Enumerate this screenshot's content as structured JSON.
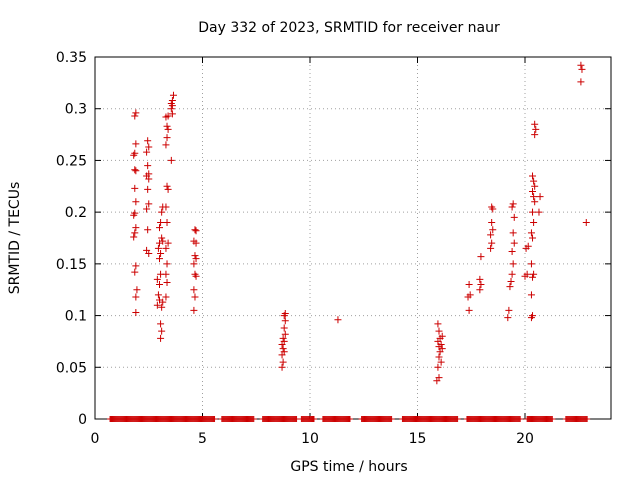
{
  "chart_data": {
    "type": "scatter",
    "title": "Day 332 of 2023, SRMTID for receiver naur",
    "xlabel": "GPS time / hours",
    "ylabel": "SRMTID / TECUs",
    "xlim": [
      0,
      24
    ],
    "ylim": [
      0,
      0.35
    ],
    "grid": true,
    "x_ticks": [
      0,
      5,
      10,
      15,
      20
    ],
    "x_tick_labels": [
      "0",
      "5",
      "10",
      "15",
      "20"
    ],
    "y_ticks": [
      0,
      0.05,
      0.1,
      0.15,
      0.2,
      0.25,
      0.3,
      0.35
    ],
    "y_tick_labels": [
      "0",
      "0.05",
      "0.1",
      "0.15",
      "0.2",
      "0.25",
      "0.3",
      "0.35"
    ],
    "marker": "+",
    "color": "#cc0000",
    "zero_ranges": [
      [
        0.7,
        5.6
      ],
      [
        5.9,
        7.4
      ],
      [
        7.8,
        9.4
      ],
      [
        9.6,
        10.2
      ],
      [
        10.6,
        11.9
      ],
      [
        12.4,
        13.8
      ],
      [
        14.3,
        16.9
      ],
      [
        17.3,
        19.8
      ],
      [
        20.1,
        21.3
      ],
      [
        21.9,
        22.9
      ]
    ],
    "series": [
      {
        "name": "SRMTID",
        "points": [
          [
            1.9,
            0.103
          ],
          [
            1.9,
            0.118
          ],
          [
            1.95,
            0.125
          ],
          [
            1.85,
            0.142
          ],
          [
            1.9,
            0.148
          ],
          [
            1.8,
            0.176
          ],
          [
            1.85,
            0.18
          ],
          [
            1.9,
            0.185
          ],
          [
            1.8,
            0.197
          ],
          [
            1.85,
            0.199
          ],
          [
            1.9,
            0.21
          ],
          [
            1.85,
            0.223
          ],
          [
            1.9,
            0.24
          ],
          [
            1.85,
            0.241
          ],
          [
            1.8,
            0.255
          ],
          [
            1.85,
            0.257
          ],
          [
            1.9,
            0.266
          ],
          [
            1.85,
            0.293
          ],
          [
            1.9,
            0.296
          ],
          [
            2.4,
            0.163
          ],
          [
            2.5,
            0.16
          ],
          [
            2.45,
            0.183
          ],
          [
            2.4,
            0.203
          ],
          [
            2.5,
            0.208
          ],
          [
            2.45,
            0.222
          ],
          [
            2.5,
            0.232
          ],
          [
            2.4,
            0.235
          ],
          [
            2.5,
            0.237
          ],
          [
            2.45,
            0.245
          ],
          [
            2.4,
            0.258
          ],
          [
            2.5,
            0.263
          ],
          [
            2.45,
            0.269
          ],
          [
            2.9,
            0.11
          ],
          [
            3.0,
            0.115
          ],
          [
            2.95,
            0.12
          ],
          [
            3.0,
            0.13
          ],
          [
            2.9,
            0.135
          ],
          [
            3.05,
            0.14
          ],
          [
            3.0,
            0.155
          ],
          [
            3.05,
            0.16
          ],
          [
            2.95,
            0.165
          ],
          [
            3.0,
            0.17
          ],
          [
            3.1,
            0.175
          ],
          [
            3.15,
            0.172
          ],
          [
            3.0,
            0.185
          ],
          [
            3.05,
            0.19
          ],
          [
            3.1,
            0.2
          ],
          [
            3.15,
            0.205
          ],
          [
            3.05,
            0.078
          ],
          [
            3.1,
            0.085
          ],
          [
            3.05,
            0.092
          ],
          [
            3.1,
            0.108
          ],
          [
            3.15,
            0.113
          ],
          [
            3.3,
            0.118
          ],
          [
            3.35,
            0.132
          ],
          [
            3.3,
            0.14
          ],
          [
            3.35,
            0.15
          ],
          [
            3.3,
            0.165
          ],
          [
            3.4,
            0.17
          ],
          [
            3.35,
            0.19
          ],
          [
            3.3,
            0.205
          ],
          [
            3.4,
            0.222
          ],
          [
            3.35,
            0.225
          ],
          [
            3.3,
            0.265
          ],
          [
            3.35,
            0.272
          ],
          [
            3.4,
            0.28
          ],
          [
            3.35,
            0.283
          ],
          [
            3.3,
            0.292
          ],
          [
            3.4,
            0.293
          ],
          [
            3.55,
            0.25
          ],
          [
            3.6,
            0.295
          ],
          [
            3.55,
            0.3
          ],
          [
            3.6,
            0.303
          ],
          [
            3.55,
            0.305
          ],
          [
            3.6,
            0.308
          ],
          [
            3.65,
            0.313
          ],
          [
            4.6,
            0.105
          ],
          [
            4.65,
            0.118
          ],
          [
            4.6,
            0.125
          ],
          [
            4.7,
            0.138
          ],
          [
            4.65,
            0.14
          ],
          [
            4.6,
            0.15
          ],
          [
            4.7,
            0.155
          ],
          [
            4.65,
            0.158
          ],
          [
            4.7,
            0.17
          ],
          [
            4.6,
            0.172
          ],
          [
            4.65,
            0.183
          ],
          [
            4.7,
            0.182
          ],
          [
            8.7,
            0.05
          ],
          [
            8.75,
            0.055
          ],
          [
            8.7,
            0.062
          ],
          [
            8.8,
            0.065
          ],
          [
            8.75,
            0.068
          ],
          [
            8.7,
            0.072
          ],
          [
            8.8,
            0.075
          ],
          [
            8.75,
            0.078
          ],
          [
            8.85,
            0.082
          ],
          [
            8.8,
            0.088
          ],
          [
            8.85,
            0.095
          ],
          [
            8.8,
            0.1
          ],
          [
            8.85,
            0.102
          ],
          [
            11.3,
            0.096
          ],
          [
            15.9,
            0.037
          ],
          [
            16.0,
            0.04
          ],
          [
            15.95,
            0.05
          ],
          [
            16.1,
            0.055
          ],
          [
            16.0,
            0.06
          ],
          [
            16.05,
            0.065
          ],
          [
            16.15,
            0.068
          ],
          [
            16.0,
            0.07
          ],
          [
            16.1,
            0.072
          ],
          [
            15.95,
            0.075
          ],
          [
            16.05,
            0.078
          ],
          [
            16.15,
            0.08
          ],
          [
            16.0,
            0.085
          ],
          [
            15.95,
            0.092
          ],
          [
            17.4,
            0.105
          ],
          [
            17.35,
            0.118
          ],
          [
            17.45,
            0.12
          ],
          [
            17.4,
            0.13
          ],
          [
            17.9,
            0.125
          ],
          [
            17.95,
            0.13
          ],
          [
            17.9,
            0.135
          ],
          [
            17.95,
            0.157
          ],
          [
            18.4,
            0.165
          ],
          [
            18.45,
            0.17
          ],
          [
            18.4,
            0.178
          ],
          [
            18.5,
            0.183
          ],
          [
            18.45,
            0.19
          ],
          [
            18.5,
            0.203
          ],
          [
            18.45,
            0.205
          ],
          [
            19.2,
            0.098
          ],
          [
            19.25,
            0.105
          ],
          [
            19.3,
            0.128
          ],
          [
            19.35,
            0.133
          ],
          [
            19.4,
            0.14
          ],
          [
            19.45,
            0.15
          ],
          [
            19.4,
            0.162
          ],
          [
            19.5,
            0.17
          ],
          [
            19.45,
            0.18
          ],
          [
            19.5,
            0.195
          ],
          [
            19.4,
            0.205
          ],
          [
            19.45,
            0.208
          ],
          [
            20.0,
            0.138
          ],
          [
            20.1,
            0.14
          ],
          [
            20.05,
            0.165
          ],
          [
            20.15,
            0.167
          ],
          [
            20.3,
            0.098
          ],
          [
            20.35,
            0.1
          ],
          [
            20.3,
            0.12
          ],
          [
            20.35,
            0.137
          ],
          [
            20.4,
            0.14
          ],
          [
            20.3,
            0.15
          ],
          [
            20.35,
            0.175
          ],
          [
            20.3,
            0.18
          ],
          [
            20.4,
            0.19
          ],
          [
            20.35,
            0.2
          ],
          [
            20.45,
            0.21
          ],
          [
            20.4,
            0.215
          ],
          [
            20.35,
            0.22
          ],
          [
            20.45,
            0.225
          ],
          [
            20.4,
            0.23
          ],
          [
            20.35,
            0.235
          ],
          [
            20.45,
            0.275
          ],
          [
            20.5,
            0.28
          ],
          [
            20.45,
            0.285
          ],
          [
            20.65,
            0.2
          ],
          [
            20.7,
            0.215
          ],
          [
            22.6,
            0.326
          ],
          [
            22.65,
            0.338
          ],
          [
            22.6,
            0.342
          ],
          [
            22.85,
            0.19
          ]
        ]
      }
    ]
  }
}
